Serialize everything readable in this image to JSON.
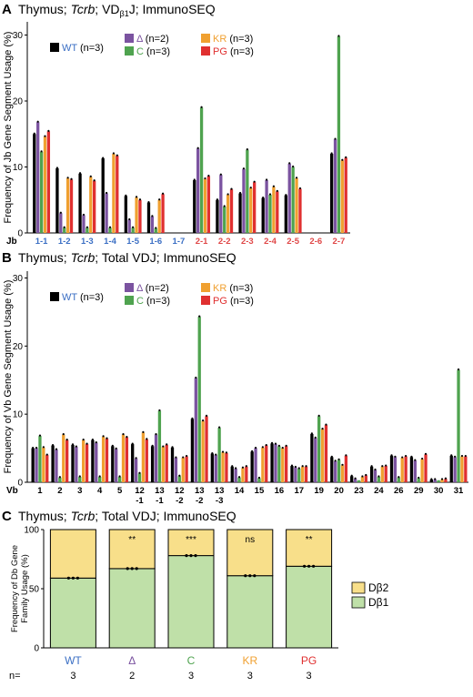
{
  "colors": {
    "WT": "#000000",
    "Δ": "#7b53a0",
    "C": "#4fa34f",
    "KR": "#f0a030",
    "PG": "#e03030",
    "jb_blue": "#3b6fc4",
    "jb_red": "#e04848",
    "dbeta2": "#f8df8a",
    "dbeta1": "#bfe0a8"
  },
  "chart_data": [
    {
      "type": "bar",
      "panel": "A",
      "title_parts": [
        "Thymus; ",
        "Tcrb",
        "; VD",
        "β1",
        "J; ImmunoSEQ"
      ],
      "ylabel": "Frequency of Jb Gene Segment Usage (%)",
      "xlabel_prefix": "Jb",
      "ylim": [
        0,
        32
      ],
      "yticks": [
        0,
        10,
        20,
        30
      ],
      "legend": [
        {
          "name": "WT",
          "n": "(n=3)"
        },
        {
          "name": "Δ",
          "n": "(n=2)"
        },
        {
          "name": "C",
          "n": "(n=3)"
        },
        {
          "name": "KR",
          "n": "(n=3)"
        },
        {
          "name": "PG",
          "n": "(n=3)"
        }
      ],
      "categories": [
        "1-1",
        "1-2",
        "1-3",
        "1-4",
        "1-5",
        "1-6",
        "1-7",
        "2-1",
        "2-2",
        "2-3",
        "2-4",
        "2-5",
        "2-6",
        "2-7"
      ],
      "category_colors": [
        "blue",
        "blue",
        "blue",
        "blue",
        "blue",
        "blue",
        "blue",
        "red",
        "red",
        "red",
        "red",
        "red",
        "red",
        "red"
      ],
      "series": [
        {
          "name": "WT",
          "values": [
            15.0,
            9.8,
            9.0,
            11.3,
            5.6,
            4.6,
            0,
            8.0,
            5.0,
            6.0,
            5.3,
            5.7,
            0,
            12.0
          ]
        },
        {
          "name": "Δ",
          "values": [
            16.8,
            3.0,
            2.7,
            6.0,
            2.0,
            2.5,
            0,
            12.8,
            8.8,
            9.7,
            8.0,
            10.5,
            0,
            14.2
          ]
        },
        {
          "name": "C",
          "values": [
            12.3,
            0.8,
            0.8,
            0.8,
            0.8,
            0.7,
            0,
            19.0,
            4.0,
            12.6,
            5.8,
            10.0,
            0,
            29.8
          ]
        },
        {
          "name": "KR",
          "values": [
            14.6,
            8.3,
            8.5,
            12.0,
            5.4,
            5.0,
            0,
            8.2,
            5.8,
            6.8,
            7.0,
            8.3,
            0,
            11.0
          ]
        },
        {
          "name": "PG",
          "values": [
            15.4,
            8.1,
            7.9,
            11.7,
            5.0,
            5.9,
            0,
            8.6,
            6.6,
            7.7,
            6.3,
            6.7,
            0,
            11.4
          ]
        }
      ]
    },
    {
      "type": "bar",
      "panel": "B",
      "title_parts": [
        "Thymus; ",
        "Tcrb",
        "; Total VDJ; ImmunoSEQ"
      ],
      "ylabel": "Frequency of Vb Gene Segment Usage (%)",
      "xlabel_prefix": "Vb",
      "ylim": [
        0,
        31
      ],
      "yticks": [
        0,
        10,
        20,
        30
      ],
      "legend": [
        {
          "name": "WT",
          "n": "(n=3)"
        },
        {
          "name": "Δ",
          "n": "(n=2)"
        },
        {
          "name": "C",
          "n": "(n=3)"
        },
        {
          "name": "KR",
          "n": "(n=3)"
        },
        {
          "name": "PG",
          "n": "(n=3)"
        }
      ],
      "categories": [
        [
          "1"
        ],
        [
          "2"
        ],
        [
          "3"
        ],
        [
          "4"
        ],
        [
          "5"
        ],
        [
          "12",
          "-1"
        ],
        [
          "13",
          "-1"
        ],
        [
          "12",
          "-2"
        ],
        [
          "13",
          "-2"
        ],
        [
          "13",
          "-3"
        ],
        [
          "14"
        ],
        [
          "15"
        ],
        [
          "16"
        ],
        [
          "17"
        ],
        [
          "19"
        ],
        [
          "20"
        ],
        [
          "23"
        ],
        [
          "24"
        ],
        [
          "26"
        ],
        [
          "29"
        ],
        [
          "30"
        ],
        [
          "31"
        ]
      ],
      "series": [
        {
          "name": "WT",
          "values": [
            5.0,
            5.4,
            5.5,
            6.2,
            5.3,
            5.6,
            5.3,
            5.1,
            9.3,
            4.2,
            2.3,
            4.5,
            5.7,
            2.4,
            7.1,
            3.7,
            0.9,
            2.3,
            3.9,
            3.7,
            0.4,
            3.9
          ]
        },
        {
          "name": "Δ",
          "values": [
            5.0,
            4.8,
            5.2,
            5.8,
            4.9,
            3.5,
            7.0,
            3.6,
            15.3,
            4.0,
            2.0,
            5.0,
            5.6,
            2.2,
            6.5,
            3.1,
            0.5,
            1.8,
            3.7,
            3.2,
            0.4,
            3.7
          ]
        },
        {
          "name": "C",
          "values": [
            6.8,
            0.7,
            0.8,
            0.8,
            0.8,
            1.3,
            10.5,
            0.9,
            24.3,
            8.0,
            0.7,
            0.6,
            5.3,
            2.0,
            9.7,
            3.3,
            0.3,
            0.8,
            0.7,
            0.6,
            0.3,
            16.5
          ]
        },
        {
          "name": "KR",
          "values": [
            5.1,
            7.0,
            6.2,
            6.7,
            7.0,
            7.3,
            5.2,
            3.6,
            9.0,
            4.4,
            2.1,
            5.1,
            5.0,
            2.3,
            7.8,
            2.5,
            0.8,
            2.3,
            3.6,
            3.4,
            0.4,
            3.8
          ]
        },
        {
          "name": "PG",
          "values": [
            4.0,
            6.2,
            5.6,
            6.4,
            6.6,
            6.3,
            5.5,
            3.8,
            9.7,
            4.3,
            2.3,
            5.4,
            5.3,
            2.3,
            8.4,
            3.9,
            1.0,
            2.4,
            3.8,
            4.1,
            0.5,
            3.8
          ]
        }
      ]
    },
    {
      "type": "bar",
      "stacked": true,
      "panel": "C",
      "title_parts": [
        "Thymus; ",
        "Tcrb",
        "; Total VDJ; ImmunoSEQ"
      ],
      "ylabel_lines": [
        "Frequency of Db Gene",
        "Family Usage (%)"
      ],
      "ylim": [
        0,
        100
      ],
      "yticks": [
        0,
        50,
        100
      ],
      "categories": [
        "WT",
        "Δ",
        "C",
        "KR",
        "PG"
      ],
      "n_label": "n=",
      "n_values": [
        "3",
        "2",
        "3",
        "3",
        "3"
      ],
      "significance": [
        "",
        "**",
        "***",
        "ns",
        "**"
      ],
      "series": [
        {
          "name": "Dβ1",
          "values": [
            59,
            67,
            78,
            61,
            69
          ]
        },
        {
          "name": "Dβ2",
          "values": [
            41,
            33,
            22,
            39,
            31
          ]
        }
      ],
      "legend": [
        "Dβ2",
        "Dβ1"
      ]
    }
  ],
  "panel_labels": [
    "A",
    "B",
    "C"
  ]
}
